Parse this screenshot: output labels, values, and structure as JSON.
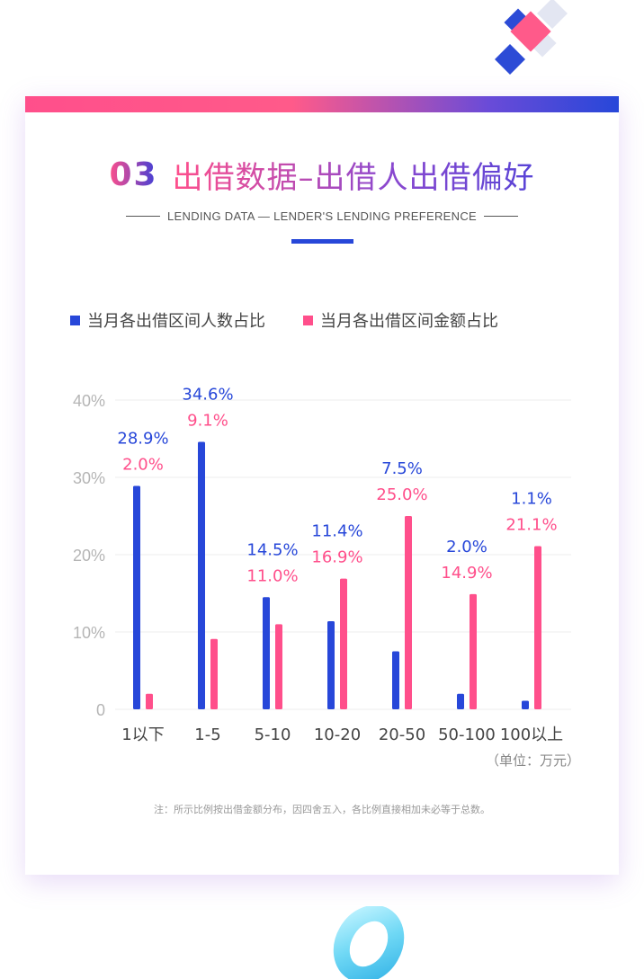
{
  "header": {
    "number": "03",
    "title": "出借数据–出借人出借偏好",
    "subtitle": "LENDING DATA — LENDER'S LENDING PREFERENCE"
  },
  "legend": {
    "series1": "当月各出借区间人数占比",
    "series2": "当月各出借区间金额占比"
  },
  "unit": "（单位：万元）",
  "note": "注：所示比例按出借金额分布，因四舍五入，各比例直接相加未必等于总数。",
  "colors": {
    "series1": "#2747d9",
    "series2": "#ff4f8b"
  },
  "chart_data": {
    "type": "bar",
    "categories": [
      "1以下",
      "1-5",
      "5-10",
      "10-20",
      "20-50",
      "50-100",
      "100以上"
    ],
    "series": [
      {
        "name": "当月各出借区间人数占比",
        "values": [
          28.9,
          34.6,
          14.5,
          11.4,
          7.5,
          2.0,
          1.1
        ],
        "labels": [
          "28.9%",
          "34.6%",
          "14.5%",
          "11.4%",
          "7.5%",
          "2.0%",
          "1.1%"
        ]
      },
      {
        "name": "当月各出借区间金额占比",
        "values": [
          2.0,
          9.1,
          11.0,
          16.9,
          25.0,
          14.9,
          21.1
        ],
        "labels": [
          "2.0%",
          "9.1%",
          "11.0%",
          "16.9%",
          "25.0%",
          "14.9%",
          "21.1%"
        ]
      }
    ],
    "yticks": [
      {
        "value": 0,
        "label": "0"
      },
      {
        "value": 10,
        "label": "10%"
      },
      {
        "value": 20,
        "label": "20%"
      },
      {
        "value": 30,
        "label": "30%"
      },
      {
        "value": 40,
        "label": "40%"
      }
    ],
    "ylim": [
      0,
      40
    ],
    "grid": true,
    "legend_position": "top-left"
  }
}
